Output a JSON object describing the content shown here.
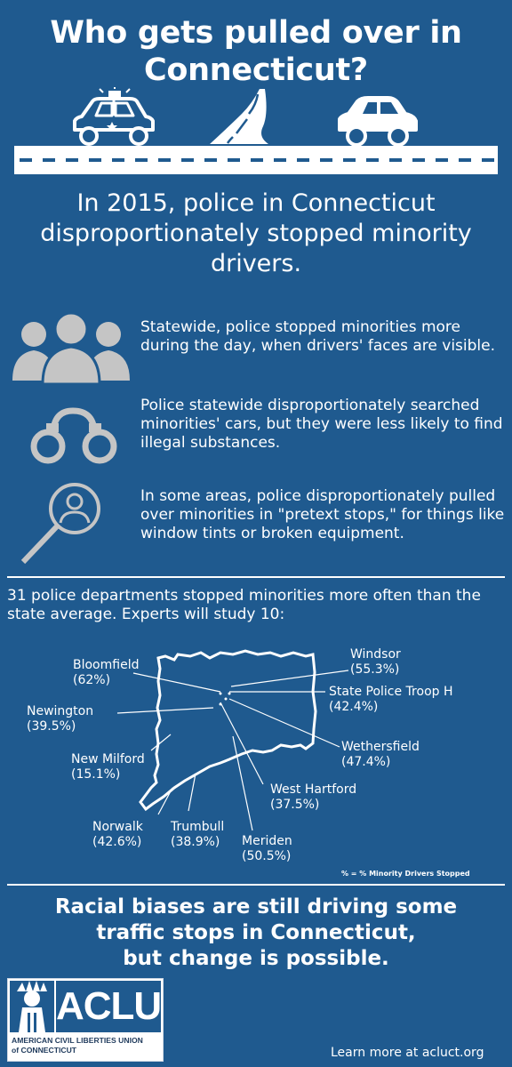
{
  "header": {
    "title": "Who gets pulled over in Connecticut?"
  },
  "intro": {
    "text": "In 2015, police in Connecticut disproportionately stopped minority drivers."
  },
  "facts": [
    {
      "icon": "people-group-icon",
      "text": "Statewide, police stopped minorities more during the day, when drivers' faces are visible."
    },
    {
      "icon": "handcuffs-icon",
      "text": "Police statewide disproportionately searched minorities' cars, but they were less likely to find illegal substances."
    },
    {
      "icon": "magnifier-person-icon",
      "text": "In some areas, police disproportionately pulled over minorities in \"pretext stops,\" for things like window tints or broken equipment."
    }
  ],
  "departments": {
    "text": "31 police departments stopped minorities more often than the state average. Experts will study 10:"
  },
  "map": {
    "cities": [
      {
        "id": "bloomfield",
        "name": "Bloomfield",
        "value": "(62%)"
      },
      {
        "id": "windsor",
        "name": "Windsor",
        "value": "(55.3%)"
      },
      {
        "id": "troop-h",
        "name": "State Police Troop H",
        "value": "(42.4%)"
      },
      {
        "id": "newington",
        "name": "Newington",
        "value": "(39.5%)"
      },
      {
        "id": "wethersfield",
        "name": "Wethersfield",
        "value": "(47.4%)"
      },
      {
        "id": "new-milford",
        "name": "New Milford",
        "value": "(15.1%)"
      },
      {
        "id": "west-hartford",
        "name": "West Hartford",
        "value": "(37.5%)"
      },
      {
        "id": "norwalk",
        "name": "Norwalk",
        "value": "(42.6%)"
      },
      {
        "id": "trumbull",
        "name": "Trumbull",
        "value": "(38.9%)"
      },
      {
        "id": "meriden",
        "name": "Meriden",
        "value": "(50.5%)"
      }
    ],
    "legend": "% =  % Minority Drivers Stopped"
  },
  "closing": {
    "line1": "Racial biases are still driving some",
    "line2": "traffic stops in Connecticut,",
    "line3": "but change is possible."
  },
  "logo": {
    "word": "ACLU",
    "subtitle_line1": "AMERICAN CIVIL LIBERTIES UNION",
    "subtitle_line2": "of CONNECTICUT"
  },
  "footer": {
    "learn_more": "Learn more at acluct.org"
  },
  "colors": {
    "background": "#1f5a8f",
    "icon_gray": "#c5c5c5",
    "text": "#ffffff"
  }
}
